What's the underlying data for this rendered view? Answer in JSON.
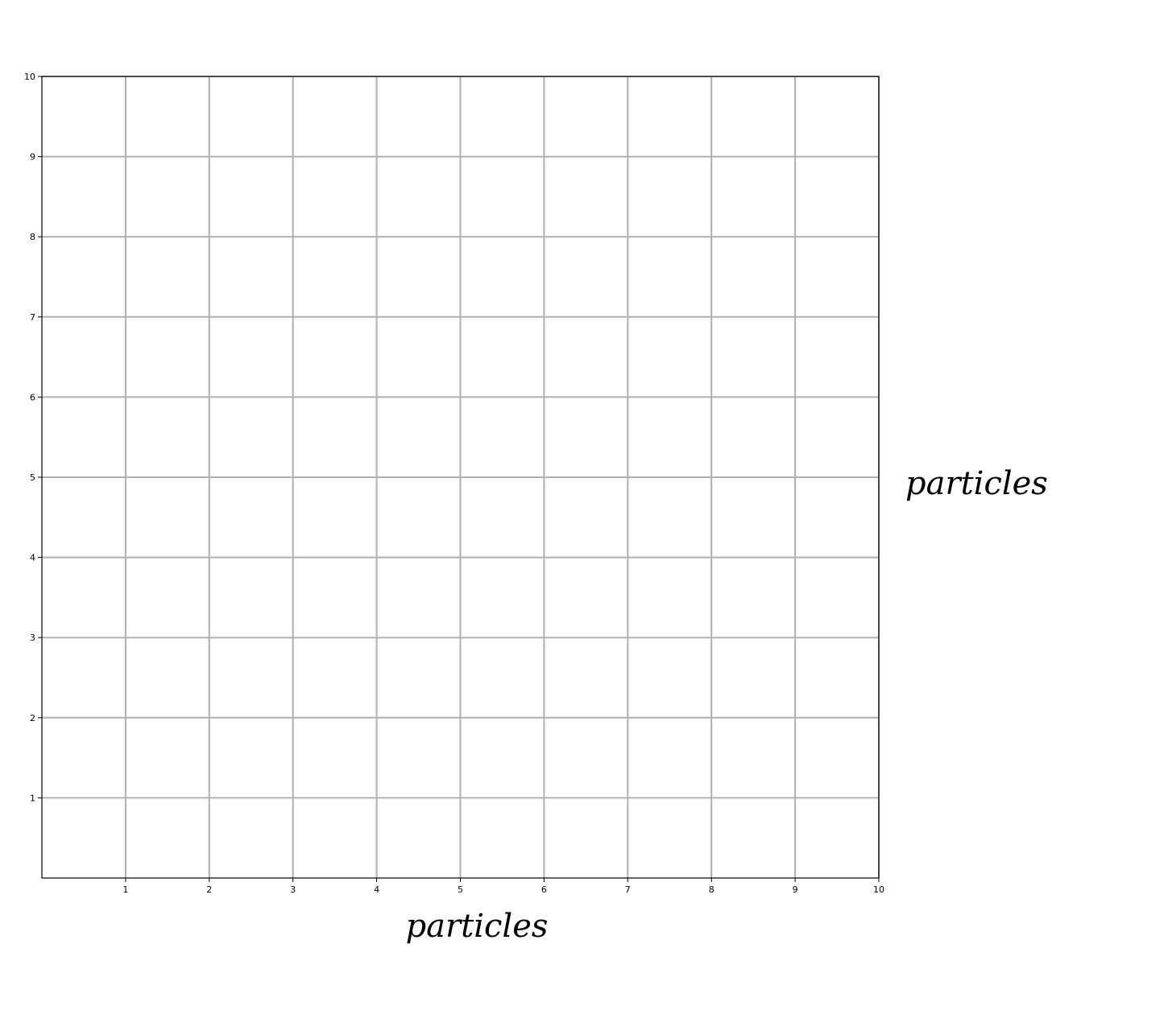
{
  "chart_data": {
    "type": "scatter",
    "title": "",
    "xlabel": "particles",
    "ylabel": "particles",
    "xlim": [
      0,
      10
    ],
    "ylim": [
      0,
      10
    ],
    "xticks": [
      1,
      2,
      3,
      4,
      5,
      6,
      7,
      8,
      9,
      10
    ],
    "yticks": [
      1,
      2,
      3,
      4,
      5,
      6,
      7,
      8,
      9,
      10
    ],
    "grid": true,
    "grid_color": "#b0b0b0",
    "series": [
      {
        "x": [],
        "y": []
      }
    ]
  }
}
